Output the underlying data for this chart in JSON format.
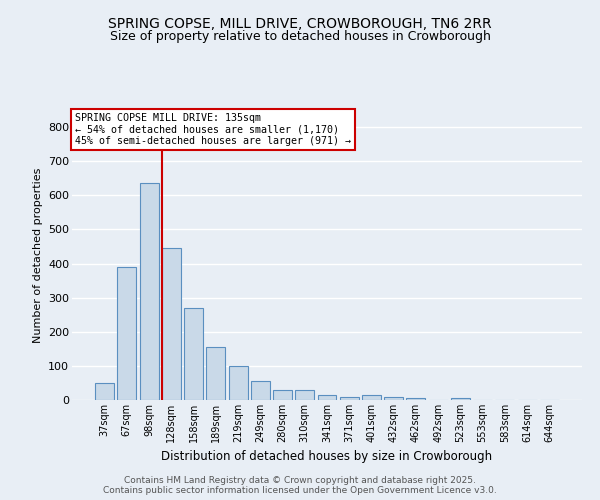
{
  "title": "SPRING COPSE, MILL DRIVE, CROWBOROUGH, TN6 2RR",
  "subtitle": "Size of property relative to detached houses in Crowborough",
  "xlabel": "Distribution of detached houses by size in Crowborough",
  "ylabel": "Number of detached properties",
  "categories": [
    "37sqm",
    "67sqm",
    "98sqm",
    "128sqm",
    "158sqm",
    "189sqm",
    "219sqm",
    "249sqm",
    "280sqm",
    "310sqm",
    "341sqm",
    "371sqm",
    "401sqm",
    "432sqm",
    "462sqm",
    "492sqm",
    "523sqm",
    "553sqm",
    "583sqm",
    "614sqm",
    "644sqm"
  ],
  "values": [
    50,
    390,
    635,
    445,
    270,
    155,
    100,
    57,
    30,
    30,
    15,
    10,
    15,
    10,
    5,
    0,
    5,
    0,
    0,
    0,
    0
  ],
  "bar_color": "#c9d9e8",
  "bar_edge_color": "#5a8fc0",
  "property_line_index": 3,
  "property_line_color": "#cc0000",
  "annotation_text": "SPRING COPSE MILL DRIVE: 135sqm\n← 54% of detached houses are smaller (1,170)\n45% of semi-detached houses are larger (971) →",
  "annotation_box_color": "#cc0000",
  "ylim": [
    0,
    850
  ],
  "background_color": "#e8eef5",
  "grid_color": "#ffffff",
  "footer_line1": "Contains HM Land Registry data © Crown copyright and database right 2025.",
  "footer_line2": "Contains public sector information licensed under the Open Government Licence v3.0.",
  "title_fontsize": 10,
  "subtitle_fontsize": 9
}
